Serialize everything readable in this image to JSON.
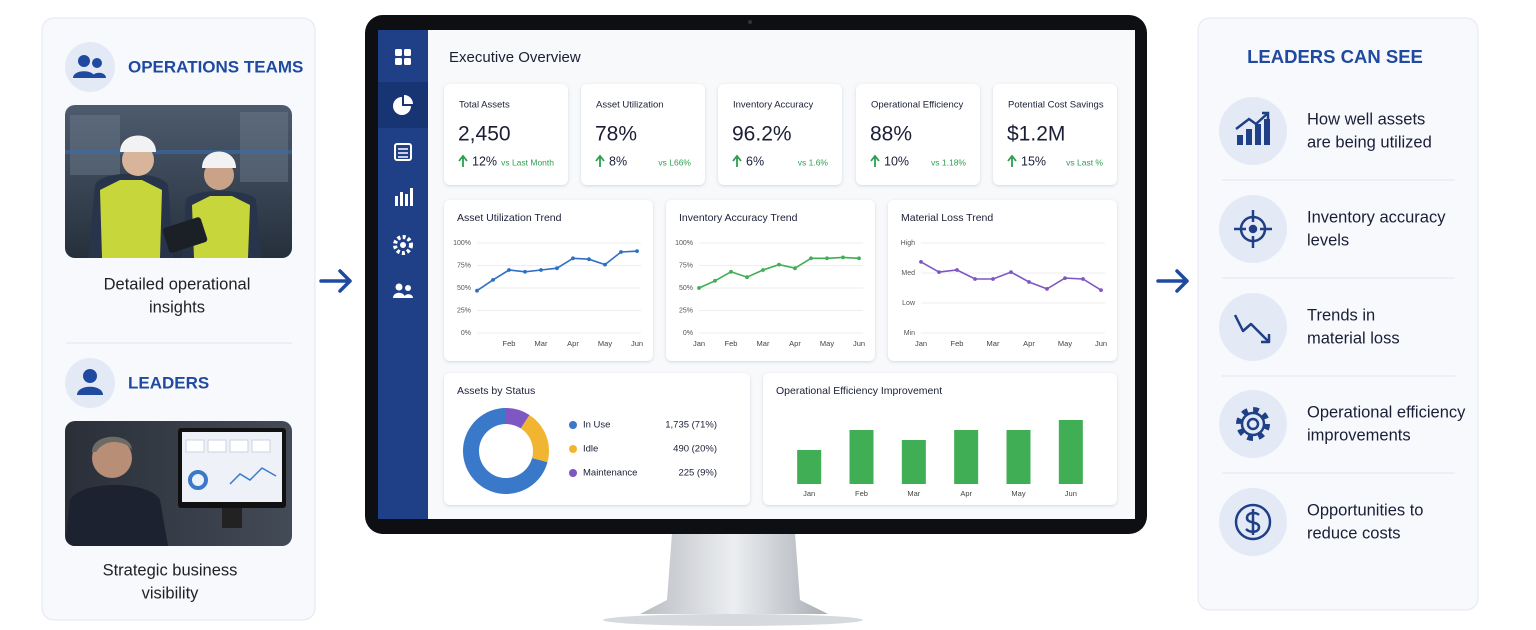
{
  "left_panel": {
    "operations": {
      "title": "OPERATIONS TEAMS",
      "caption": [
        "Detailed operational",
        "insights"
      ]
    },
    "leaders": {
      "title": "LEADERS",
      "caption": [
        "Strategic business",
        "visibility"
      ]
    }
  },
  "dashboard": {
    "title": "Executive Overview",
    "kpis": [
      {
        "label": "Total Assets",
        "value": "2,450",
        "change": "12%",
        "comparison": "vs Last Month"
      },
      {
        "label": "Asset Utilization",
        "value": "78%",
        "change": "8%",
        "comparison": "vs L66%"
      },
      {
        "label": "Inventory Accuracy",
        "value": "96.2%",
        "change": "6%",
        "comparison": "vs 1.6%"
      },
      {
        "label": "Operational Efficiency",
        "value": "88%",
        "change": "10%",
        "comparison": "vs 1.18%"
      },
      {
        "label": "Potential Cost Savings",
        "value": "$1.2M",
        "change": "15%",
        "comparison": "vs Last %"
      }
    ]
  },
  "chart_data": [
    {
      "type": "line",
      "title": "Asset Utilization Trend",
      "categories": [
        null,
        null,
        "Feb",
        null,
        "Mar",
        null,
        "Apr",
        null,
        "May",
        null,
        "Jun"
      ],
      "values": [
        47,
        59,
        70,
        68,
        70,
        72,
        83,
        82,
        76,
        90,
        91
      ],
      "color": "#2f6fc4",
      "ylim": [
        0,
        100
      ],
      "yticks": [
        {
          "value": 0,
          "label": "0%"
        },
        {
          "value": 25,
          "label": "25%"
        },
        {
          "value": 50,
          "label": "50%"
        },
        {
          "value": 75,
          "label": "75%"
        },
        {
          "value": 100,
          "label": "100%"
        }
      ],
      "grid": true
    },
    {
      "type": "line",
      "title": "Inventory Accuracy Trend",
      "categories": [
        "Jan",
        null,
        "Feb",
        null,
        "Mar",
        null,
        "Apr",
        null,
        "May",
        null,
        "Jun"
      ],
      "values": [
        50,
        58,
        68,
        62,
        70,
        76,
        72,
        83,
        83,
        84,
        83
      ],
      "color": "#3fae54",
      "ylim": [
        0,
        100
      ],
      "yticks": [
        {
          "value": 0,
          "label": "0%"
        },
        {
          "value": 25,
          "label": "25%"
        },
        {
          "value": 50,
          "label": "50%"
        },
        {
          "value": 75,
          "label": "75%"
        },
        {
          "value": 100,
          "label": "100%"
        }
      ],
      "grid": true
    },
    {
      "type": "line",
      "title": "Material Loss Trend",
      "categories": [
        "Jan",
        null,
        "Feb",
        null,
        "Mar",
        null,
        "Apr",
        null,
        "May",
        null,
        "Jun"
      ],
      "values": [
        2.37,
        2.03,
        2.1,
        1.8,
        1.8,
        2.03,
        1.7,
        1.47,
        1.83,
        1.8,
        1.43
      ],
      "color": "#7e57c2",
      "ylim": [
        0,
        3
      ],
      "yticks": [
        {
          "value": 0,
          "label": "Min"
        },
        {
          "value": 1,
          "label": "Low"
        },
        {
          "value": 2,
          "label": "Med"
        },
        {
          "value": 3,
          "label": "High"
        }
      ],
      "grid": true
    },
    {
      "type": "donut",
      "title": "Assets by Status",
      "categories": [
        "In Use",
        "Idle",
        "Maintenance"
      ],
      "values": [
        1735,
        490,
        225
      ],
      "value_labels": [
        "1,735 (71%)",
        "490 (20%)",
        "225 (9%)"
      ],
      "colors": [
        "#3a78c9",
        "#f2b531",
        "#7e57c2"
      ]
    },
    {
      "type": "bar",
      "title": "Operational Efficiency Improvement",
      "categories": [
        "Jan",
        "Feb",
        "Mar",
        "Apr",
        "May",
        "Jun"
      ],
      "values": [
        34,
        54,
        44,
        54,
        54,
        64
      ],
      "color": "#3fae54",
      "ylim": [
        0,
        80
      ]
    }
  ],
  "right_panel": {
    "title": "LEADERS CAN SEE",
    "items": [
      [
        "How well assets",
        "are being utilized"
      ],
      [
        "Inventory accuracy",
        "levels"
      ],
      [
        "Trends in",
        "material loss"
      ],
      [
        "Operational efficiency",
        "improvements"
      ],
      [
        "Opportunities to",
        "reduce costs"
      ]
    ]
  }
}
